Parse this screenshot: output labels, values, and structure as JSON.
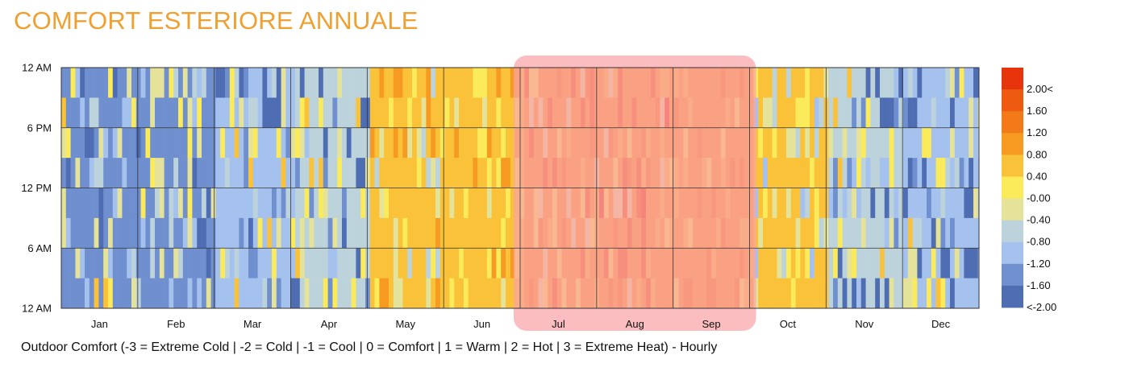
{
  "title": "COMFORT ESTERIORE ANNUALE",
  "caption": "Outdoor Comfort (-3 = Extreme Cold | -2 = Cold | -1 = Cool | 0 = Comfort | 1 = Warm | 2 = Hot | 3 = Extreme Heat) - Hourly",
  "colors": {
    "title": "#f0a030",
    "highlight": "#f9a3a8",
    "grid": "#333333"
  },
  "chart_data": {
    "type": "heatmap",
    "title": "COMFORT ESTERIORE ANNUALE",
    "xlabel": "",
    "ylabel": "",
    "x_tick_labels": [
      "Jan",
      "Feb",
      "Mar",
      "Apr",
      "May",
      "Jun",
      "Jul",
      "Aug",
      "Sep",
      "Oct",
      "Nov",
      "Dec"
    ],
    "y_tick_labels": [
      "12 AM",
      "6 PM",
      "12 PM",
      "6 AM",
      "12 AM"
    ],
    "value_range": [
      -2.0,
      2.0
    ],
    "colorbar": {
      "tick_labels": [
        "2.00<",
        "1.60",
        "1.20",
        "0.80",
        "0.40",
        "-0.00",
        "-0.40",
        "-0.80",
        "-1.20",
        "-1.60",
        "<-2.00"
      ],
      "colors": [
        "#e8340c",
        "#ee5a10",
        "#f27a18",
        "#f69a22",
        "#f9c239",
        "#fbeb5b",
        "#e5e39a",
        "#bcd3dc",
        "#a5c1ee",
        "#6f8fcf",
        "#4f6db3"
      ]
    },
    "highlight": {
      "months": [
        "Jul",
        "Aug",
        "Sep"
      ],
      "label": ""
    },
    "monthly_typical": [
      {
        "month": "Jan",
        "dominant": -1.6,
        "range": [
          -2.0,
          0.2
        ]
      },
      {
        "month": "Feb",
        "dominant": -1.6,
        "range": [
          -2.0,
          0.2
        ]
      },
      {
        "month": "Mar",
        "dominant": -1.2,
        "range": [
          -2.0,
          0.4
        ]
      },
      {
        "month": "Apr",
        "dominant": -0.8,
        "range": [
          -2.0,
          0.4
        ]
      },
      {
        "month": "May",
        "dominant": 0.2,
        "range": [
          -0.8,
          0.8
        ]
      },
      {
        "month": "Jun",
        "dominant": 0.2,
        "range": [
          -0.4,
          0.8
        ]
      },
      {
        "month": "Jul",
        "dominant": 0.8,
        "range": [
          -0.4,
          1.6
        ]
      },
      {
        "month": "Aug",
        "dominant": 0.8,
        "range": [
          -0.4,
          2.0
        ]
      },
      {
        "month": "Sep",
        "dominant": 0.8,
        "range": [
          0.0,
          1.2
        ]
      },
      {
        "month": "Oct",
        "dominant": 0.2,
        "range": [
          -1.2,
          0.4
        ]
      },
      {
        "month": "Nov",
        "dominant": -0.8,
        "range": [
          -2.0,
          0.4
        ]
      },
      {
        "month": "Dec",
        "dominant": -1.2,
        "range": [
          -2.0,
          0.2
        ]
      }
    ]
  }
}
